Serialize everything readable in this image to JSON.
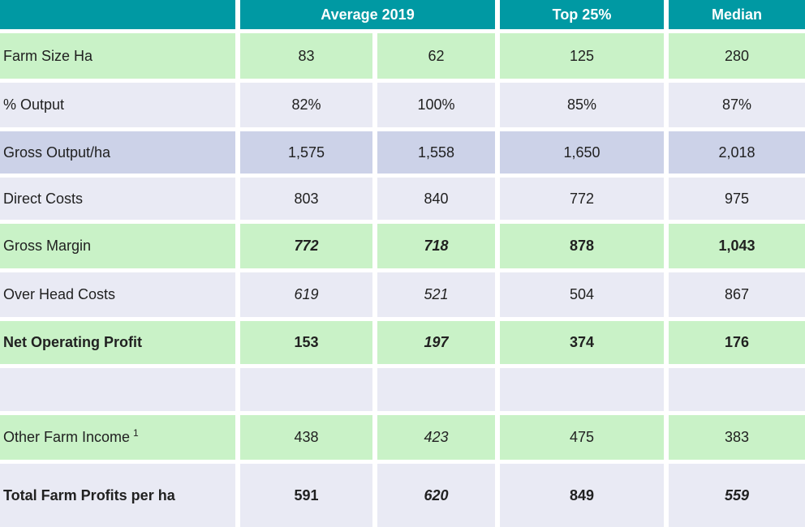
{
  "colors": {
    "header_bg": "#0099a3",
    "header_text": "#ffffff",
    "row_green": "#c9f2c7",
    "row_lavender_light": "#e9eaf4",
    "row_lavender_dark": "#ccd2e8",
    "body_text": "#212121",
    "gap": "#ffffff"
  },
  "chart_data": {
    "type": "table",
    "title": "",
    "columns": [
      {
        "label": "Average 2019",
        "span": 2
      },
      {
        "label": "Top 25%",
        "span": 1
      },
      {
        "label": "Median",
        "span": 1
      }
    ],
    "rows": [
      {
        "label": "Farm Size Ha",
        "bg": "green",
        "label_bold": false,
        "values": [
          "83",
          "62",
          "125",
          "280"
        ],
        "value_styles": [
          "n",
          "n",
          "n",
          "n"
        ]
      },
      {
        "label": "% Output",
        "bg": "lav1",
        "label_bold": false,
        "values": [
          "82%",
          "100%",
          "85%",
          "87%"
        ],
        "value_styles": [
          "n",
          "n",
          "n",
          "n"
        ]
      },
      {
        "label": "Gross Output/ha",
        "bg": "lav2",
        "label_bold": false,
        "values": [
          "1,575",
          "1,558",
          "1,650",
          "2,018"
        ],
        "value_styles": [
          "n",
          "n",
          "n",
          "n"
        ]
      },
      {
        "label": "Direct Costs",
        "bg": "lav1",
        "label_bold": false,
        "values": [
          "803",
          "840",
          "772",
          "975"
        ],
        "value_styles": [
          "n",
          "n",
          "n",
          "n"
        ]
      },
      {
        "label": "Gross Margin",
        "bg": "green",
        "label_bold": false,
        "values": [
          "772",
          "718",
          "878",
          "1,043"
        ],
        "value_styles": [
          "bi",
          "bi",
          "b",
          "b"
        ]
      },
      {
        "label": "Over Head Costs",
        "bg": "lav1",
        "label_bold": false,
        "values": [
          "619",
          "521",
          "504",
          "867"
        ],
        "value_styles": [
          "i",
          "i",
          "n",
          "n"
        ]
      },
      {
        "label": "Net Operating Profit",
        "bg": "green",
        "label_bold": true,
        "values": [
          "153",
          "197",
          "374",
          "176"
        ],
        "value_styles": [
          "b",
          "bi",
          "b",
          "b"
        ]
      },
      {
        "label": "",
        "bg": "lav1",
        "label_bold": false,
        "values": [
          "",
          "",
          "",
          ""
        ],
        "value_styles": [
          "n",
          "n",
          "n",
          "n"
        ]
      },
      {
        "label": "Other Farm Income",
        "label_sup": "1",
        "bg": "green",
        "label_bold": false,
        "values": [
          "438",
          "423",
          "475",
          "383"
        ],
        "value_styles": [
          "n",
          "i",
          "n",
          "n"
        ]
      },
      {
        "label": "Total Farm Profits per ha",
        "bg": "lav1",
        "label_bold": true,
        "values": [
          "591",
          "620",
          "849",
          "559"
        ],
        "value_styles": [
          "b",
          "bi",
          "b",
          "bi"
        ]
      }
    ]
  }
}
